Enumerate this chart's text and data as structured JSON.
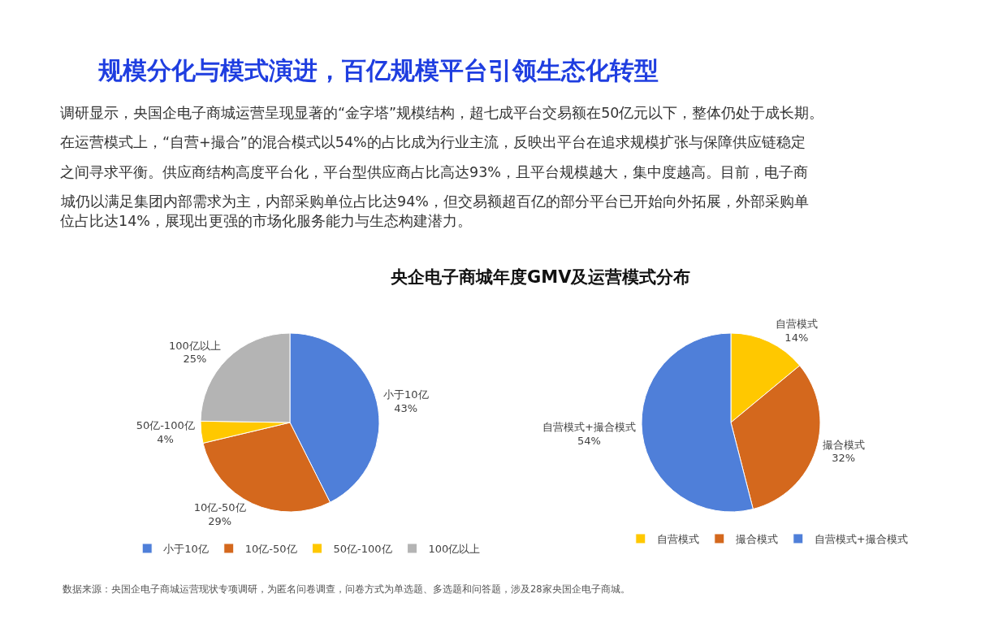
{
  "chart_data": [
    {
      "type": "pie",
      "title": "央企电子商城年度GMV及运营模式分布",
      "categories": [
        "小于10亿",
        "10亿-50亿",
        "50亿-100亿",
        "100亿以上"
      ],
      "values": [
        43,
        29,
        4,
        25
      ],
      "colors": [
        "#4f7fd9",
        "#d4681d",
        "#ffc800",
        "#b4b4b4"
      ],
      "value_labels": [
        "43%",
        "29%",
        "4%",
        "25%"
      ],
      "legend": "bottom",
      "annotations": [
        "规模分化与模式演进，百亿规模平台引领生态化转型",
        "调研显示，央国企电子商城运营呈现显著的“金字塔”规模结构，超七成平台交易额在50亿元以下，整体仍处于成长期。",
        "在运营模式上，“自营+撮合”的混合模式以54%的占比成为行业主流，反映出平台在追求规模扩张与保障供应链稳定",
        "之间寻求平衡。供应商结构高度平台化，平台型供应商占比高达93%，且平台规模越大，集中度越高。目前，电子商",
        "城仍以满足集团内部需求为主，内部采购单位占比达94%，但交易额超百亿的部分平台已开始向外拓展，外部采购单",
        "位占比达14%，展现出更强的市场化服务能力与生态构建潜力。",
        "数据来源：央国企电子商城运营现状专项调研，为匿名问卷调查，问卷方式为单选题、多选题和问答题，涉及28家央国企电子商城。"
      ]
    },
    {
      "type": "pie",
      "categories": [
        "自营模式",
        "撮合模式",
        "自营模式+撮合模式"
      ],
      "values": [
        14,
        32,
        54
      ],
      "colors": [
        "#ffc800",
        "#d4681d",
        "#4f7fd9"
      ],
      "value_labels": [
        "14%",
        "32%",
        "54%"
      ],
      "legend": "bottom"
    }
  ]
}
